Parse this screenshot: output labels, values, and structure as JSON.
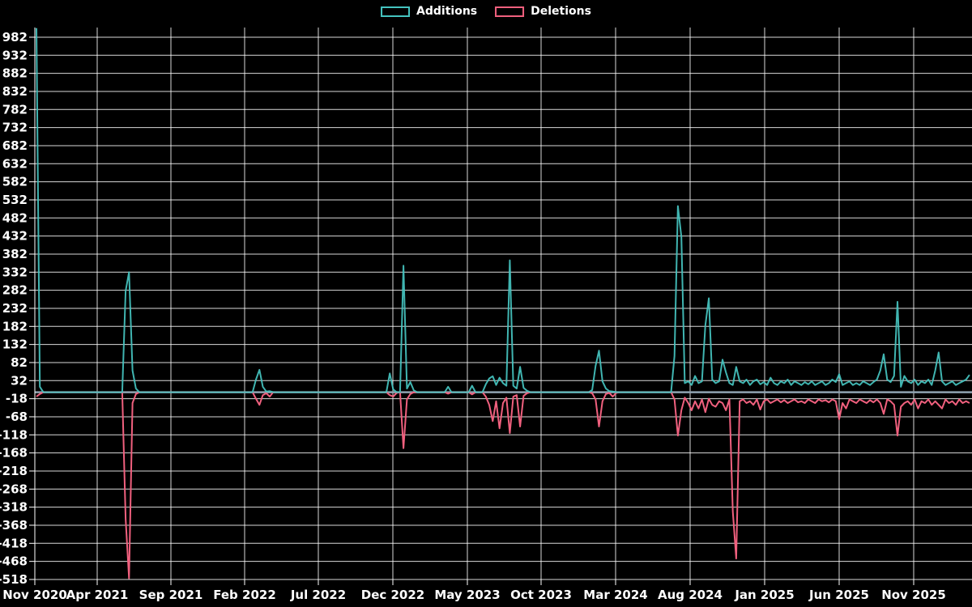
{
  "legend": {
    "items": [
      {
        "label": "Additions",
        "color": "#45c4c0"
      },
      {
        "label": "Deletions",
        "color": "#f0607e"
      }
    ]
  },
  "colors": {
    "background": "#000000",
    "gridline": "#ffffff",
    "zeroline": "#8fa3b0",
    "tick_text": "#ffffff",
    "additions_line": "#45c4c0",
    "deletions_line": "#f0607e"
  },
  "chart_data": {
    "type": "line",
    "title": "",
    "xlabel": "",
    "ylabel": "",
    "grid": true,
    "legend_position": "top-center",
    "x_axis": {
      "unit": "weeks (Nov 2020 - early 2026)",
      "tick_labels": [
        "Nov 2020",
        "Apr 2021",
        "Sep 2021",
        "Feb 2022",
        "Jul 2022",
        "Dec 2022",
        "May 2023",
        "Oct 2023",
        "Mar 2024",
        "Aug 2024",
        "Jan 2025",
        "Jun 2025",
        "Nov 2025"
      ]
    },
    "y_axis": {
      "min": -518,
      "max": 982,
      "step": 50,
      "tick_labels": [
        "982",
        "932",
        "882",
        "832",
        "782",
        "732",
        "682",
        "632",
        "582",
        "532",
        "482",
        "432",
        "382",
        "332",
        "282",
        "232",
        "182",
        "132",
        "82",
        "32",
        "-18",
        "-68",
        "-118",
        "-168",
        "-218",
        "-268",
        "-318",
        "-368",
        "-418",
        "-468",
        "-518"
      ]
    },
    "total_weeks": 273,
    "default_value": 0,
    "series": [
      {
        "name": "Additions",
        "color": "#45c4c0",
        "segments": [
          {
            "start_week": 0,
            "values": [
              1007,
              15
            ]
          },
          {
            "start_week": 26,
            "values": [
              280,
              332,
              60,
              10
            ]
          },
          {
            "start_week": 64,
            "values": [
              35,
              62,
              15,
              2,
              3
            ]
          },
          {
            "start_week": 103,
            "values": [
              52,
              8,
              0,
              0,
              350,
              10,
              28,
              5
            ]
          },
          {
            "start_week": 120,
            "values": [
              15
            ]
          },
          {
            "start_week": 127,
            "values": [
              18
            ]
          },
          {
            "start_week": 131,
            "values": [
              22,
              38,
              44,
              20,
              40,
              25,
              18,
              365,
              18,
              10,
              70,
              12,
              4
            ]
          },
          {
            "start_week": 162,
            "values": [
              6,
              73,
              115,
              30,
              10,
              3,
              2,
              0
            ]
          },
          {
            "start_week": 186,
            "values": [
              100,
              515,
              430,
              25,
              30,
              20,
              45,
              25,
              30,
              185,
              260,
              35,
              25,
              30,
              90,
              55,
              25,
              20,
              70,
              30,
              25,
              35,
              20,
              30,
              35,
              22,
              28,
              20,
              40,
              25,
              20,
              30,
              25,
              35,
              20,
              30,
              25,
              20,
              28,
              22,
              30,
              20,
              25,
              30,
              20,
              25,
              35,
              28,
              50,
              20,
              25,
              30,
              20,
              25,
              20,
              30,
              25,
              20,
              28,
              35,
              60,
              105,
              35,
              28,
              45,
              250,
              15,
              45,
              30,
              25,
              35,
              20,
              30,
              25,
              35,
              20,
              60,
              110,
              30,
              20,
              25,
              30,
              20,
              25,
              30,
              35,
              48
            ]
          }
        ]
      },
      {
        "name": "Deletions",
        "color": "#f0607e",
        "segments": [
          {
            "start_week": 0,
            "values": [
              -12,
              -5
            ]
          },
          {
            "start_week": 26,
            "values": [
              -350,
              -515,
              -30,
              -5
            ]
          },
          {
            "start_week": 64,
            "values": [
              -18,
              -35,
              -8,
              -3,
              -12
            ]
          },
          {
            "start_week": 103,
            "values": [
              -8,
              -12,
              -2,
              0,
              -155,
              -20,
              -5,
              0
            ]
          },
          {
            "start_week": 120,
            "values": [
              -4
            ]
          },
          {
            "start_week": 127,
            "values": [
              -6
            ]
          },
          {
            "start_week": 131,
            "values": [
              -12,
              -35,
              -80,
              -25,
              -100,
              -30,
              -15,
              -113,
              -12,
              -8,
              -95,
              -10,
              -3
            ]
          },
          {
            "start_week": 162,
            "values": [
              -3,
              -20,
              -95,
              -25,
              -5,
              -2,
              -12,
              -2
            ]
          },
          {
            "start_week": 186,
            "values": [
              -20,
              -120,
              -50,
              -15,
              -30,
              -50,
              -25,
              -45,
              -20,
              -55,
              -18,
              -35,
              -40,
              -25,
              -30,
              -50,
              -20,
              -330,
              -460,
              -25,
              -20,
              -30,
              -25,
              -35,
              -20,
              -48,
              -25,
              -20,
              -30,
              -25,
              -20,
              -28,
              -22,
              -30,
              -25,
              -20,
              -28,
              -25,
              -30,
              -20,
              -25,
              -30,
              -20,
              -25,
              -22,
              -28,
              -20,
              -25,
              -75,
              -30,
              -45,
              -20,
              -25,
              -30,
              -20,
              -25,
              -30,
              -22,
              -28,
              -20,
              -30,
              -60,
              -20,
              -25,
              -35,
              -120,
              -40,
              -30,
              -25,
              -35,
              -20,
              -45,
              -25,
              -30,
              -20,
              -35,
              -25,
              -35,
              -45,
              -20,
              -30,
              -25,
              -35,
              -20,
              -30,
              -25,
              -30
            ]
          }
        ]
      }
    ]
  }
}
